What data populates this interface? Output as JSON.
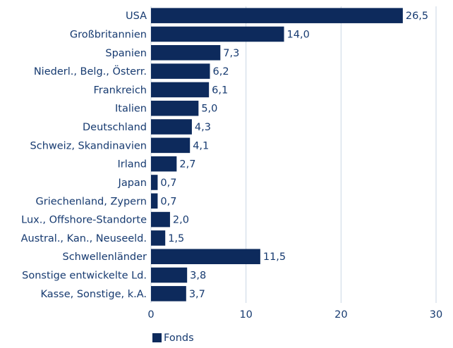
{
  "chart_data": {
    "type": "barh",
    "categories": [
      "USA",
      "Großbritannien",
      "Spanien",
      "Niederl., Belg., Österr.",
      "Frankreich",
      "Italien",
      "Deutschland",
      "Schweiz, Skandinavien",
      "Irland",
      "Japan",
      "Griechenland, Zypern",
      "Lux., Offshore-Standorte",
      "Austral., Kan., Neuseeld.",
      "Schwellenländer",
      "Sonstige entwickelte Ld.",
      "Kasse, Sonstige, k.A."
    ],
    "series": [
      {
        "name": "Fonds",
        "color": "#0d2a5c",
        "values": [
          26.5,
          14.0,
          7.3,
          6.2,
          6.1,
          5.0,
          4.3,
          4.1,
          2.7,
          0.7,
          0.7,
          2.0,
          1.5,
          11.5,
          3.8,
          3.7
        ],
        "value_labels": [
          "26,5",
          "14,0",
          "7,3",
          "6,2",
          "6,1",
          "5,0",
          "4,3",
          "4,1",
          "2,7",
          "0,7",
          "0,7",
          "2,0",
          "1,5",
          "11,5",
          "3,8",
          "3,7"
        ]
      }
    ],
    "xlim": [
      0,
      30
    ],
    "xticks": [
      0,
      10,
      20,
      30
    ],
    "grid": true,
    "legend": "bottom"
  }
}
